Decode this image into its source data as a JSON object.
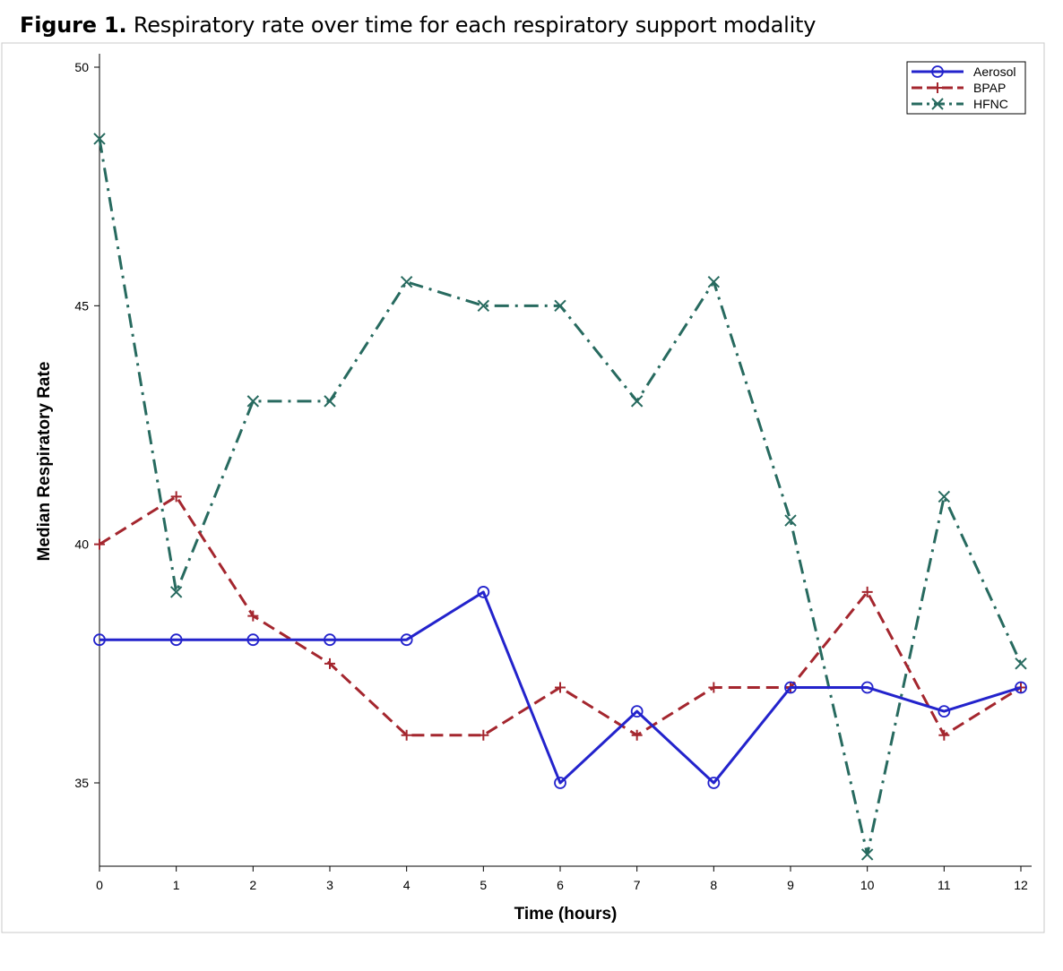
{
  "figure": {
    "label": "Figure 1.",
    "caption": "Respiratory rate over time for each respiratory support modality"
  },
  "chart_data": {
    "type": "line",
    "x": [
      0,
      1,
      2,
      3,
      4,
      5,
      6,
      7,
      8,
      9,
      10,
      11,
      12
    ],
    "xlabel": "Time (hours)",
    "ylabel": "Median Respiratory Rate",
    "xlim": [
      0,
      12
    ],
    "ylim": [
      33.2,
      50.2
    ],
    "xticks": [
      0,
      1,
      2,
      3,
      4,
      5,
      6,
      7,
      8,
      9,
      10,
      11,
      12
    ],
    "yticks": [
      35,
      40,
      45,
      50
    ],
    "grid": false,
    "legend_position": "top-right",
    "series": [
      {
        "name": "Aerosol",
        "color": "#2323cc",
        "marker": "circle",
        "line": "solid",
        "values": [
          38,
          38,
          38,
          38,
          38,
          39,
          35,
          36.5,
          35,
          37,
          37,
          36.5,
          37
        ]
      },
      {
        "name": "BPAP",
        "color": "#a4262e",
        "marker": "plus",
        "line": "dashed",
        "values": [
          40,
          41,
          38.5,
          37.5,
          36,
          36,
          37,
          36,
          37,
          37,
          39,
          36,
          37
        ]
      },
      {
        "name": "HFNC",
        "color": "#276a5f",
        "marker": "x",
        "line": "dashdot",
        "values": [
          48.5,
          39,
          43,
          43,
          45.5,
          45,
          45,
          43,
          45.5,
          40.5,
          33.5,
          41,
          37.5
        ]
      }
    ]
  }
}
